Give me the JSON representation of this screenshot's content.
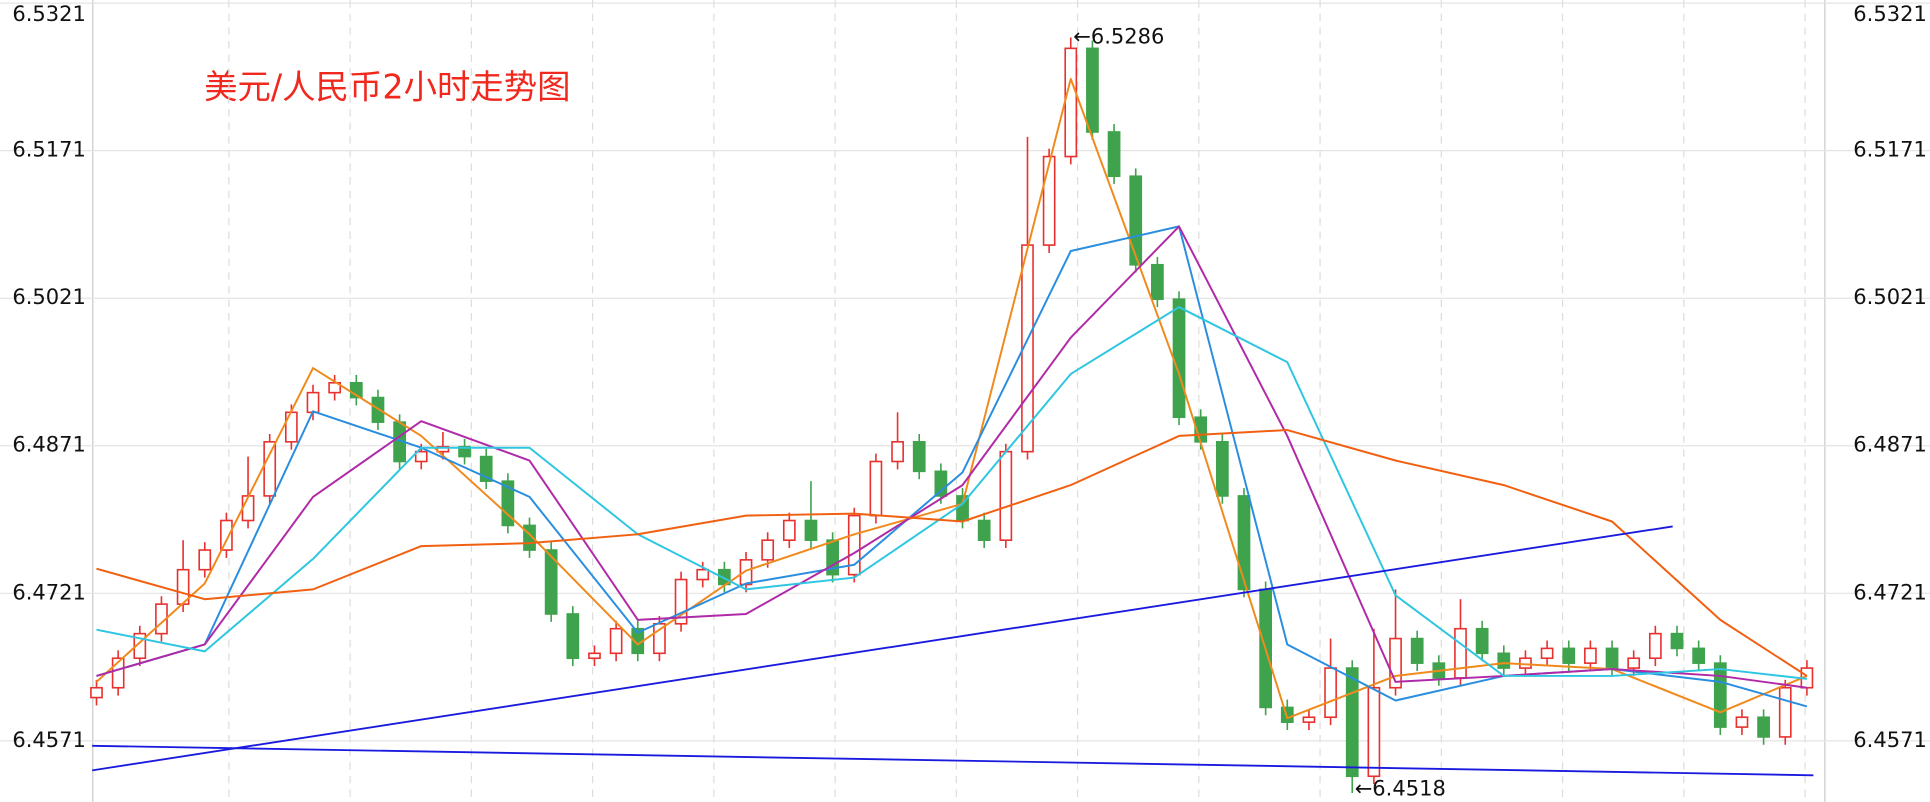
{
  "chart_data": {
    "type": "candlestick",
    "title": "美元/人民币2小时走势图",
    "ylim": [
      6.4509,
      6.5324
    ],
    "yticks": [
      6.4571,
      6.4721,
      6.4871,
      6.5021,
      6.5171,
      6.5321
    ],
    "grid": true,
    "up_color": "#e8312f",
    "down_color": "#3fa34d",
    "open": [
      6.4615,
      6.4625,
      6.4655,
      6.468,
      6.471,
      6.4745,
      6.4765,
      6.4795,
      6.482,
      6.4875,
      6.4905,
      6.4925,
      6.4935,
      6.492,
      6.4895,
      6.4855,
      6.4865,
      6.487,
      6.486,
      6.4835,
      6.479,
      6.4765,
      6.47,
      6.4655,
      6.466,
      6.4685,
      6.466,
      6.469,
      6.4735,
      6.4745,
      6.473,
      6.4755,
      6.4775,
      6.4795,
      6.4775,
      6.474,
      6.48,
      6.4855,
      6.4875,
      6.4845,
      6.482,
      6.4795,
      6.4775,
      6.4865,
      6.5075,
      6.5165,
      6.5275,
      6.519,
      6.5145,
      6.5055,
      6.502,
      6.49,
      6.4875,
      6.482,
      6.4725,
      6.4605,
      6.459,
      6.4595,
      6.4645,
      6.4535,
      6.4625,
      6.4675,
      6.465,
      6.4635,
      6.4685,
      6.466,
      6.4645,
      6.4655,
      6.4665,
      6.465,
      6.4665,
      6.4645,
      6.4655,
      6.468,
      6.4665,
      6.465,
      6.4585,
      6.4595,
      6.4575,
      6.4625
    ],
    "high": [
      6.4633,
      6.4663,
      6.4688,
      6.4718,
      6.4775,
      6.4773,
      6.4803,
      6.486,
      6.4883,
      6.4913,
      6.4933,
      6.4943,
      6.4943,
      6.4928,
      6.4903,
      6.4873,
      6.4885,
      6.4878,
      6.4868,
      6.4843,
      6.4798,
      6.4773,
      6.4708,
      6.4668,
      6.4693,
      6.4693,
      6.4698,
      6.4743,
      6.4753,
      6.4753,
      6.4763,
      6.4783,
      6.4803,
      6.4835,
      6.4783,
      6.4808,
      6.4863,
      6.4905,
      6.4883,
      6.4853,
      6.4828,
      6.4803,
      6.4873,
      6.5185,
      6.5173,
      6.5286,
      6.5283,
      6.5198,
      6.5153,
      6.5063,
      6.5028,
      6.4908,
      6.4883,
      6.4828,
      6.4733,
      6.4613,
      6.4603,
      6.4675,
      6.4653,
      6.4685,
      6.4725,
      6.4683,
      6.4658,
      6.4715,
      6.4693,
      6.4668,
      6.4663,
      6.4673,
      6.4673,
      6.4673,
      6.4673,
      6.4663,
      6.4688,
      6.4688,
      6.4673,
      6.4658,
      6.4603,
      6.4603,
      6.4633,
      6.4653
    ],
    "low": [
      6.4607,
      6.4617,
      6.4647,
      6.4672,
      6.4702,
      6.4737,
      6.4757,
      6.4787,
      6.4812,
      6.4867,
      6.4897,
      6.4917,
      6.4912,
      6.4887,
      6.4847,
      6.4847,
      6.4857,
      6.4852,
      6.4827,
      6.4782,
      6.4757,
      6.4692,
      6.4647,
      6.4647,
      6.4652,
      6.4652,
      6.4652,
      6.4682,
      6.4727,
      6.4722,
      6.4722,
      6.4747,
      6.4767,
      6.4767,
      6.4732,
      6.4732,
      6.4792,
      6.4847,
      6.4837,
      6.4812,
      6.4787,
      6.4767,
      6.4767,
      6.4857,
      6.5067,
      6.5157,
      6.5182,
      6.5137,
      6.5047,
      6.5012,
      6.4892,
      6.4867,
      6.4812,
      6.4717,
      6.4597,
      6.4582,
      6.4582,
      6.4587,
      6.4518,
      6.4527,
      6.4617,
      6.4642,
      6.4627,
      6.4627,
      6.4652,
      6.4637,
      6.4637,
      6.4647,
      6.4642,
      6.4642,
      6.4637,
      6.4637,
      6.4647,
      6.4657,
      6.4642,
      6.4577,
      6.4577,
      6.4567,
      6.4567,
      6.4617
    ],
    "close": [
      6.4625,
      6.4655,
      6.468,
      6.471,
      6.4745,
      6.4765,
      6.4795,
      6.482,
      6.4875,
      6.4905,
      6.4925,
      6.4935,
      6.492,
      6.4895,
      6.4855,
      6.4865,
      6.487,
      6.486,
      6.4835,
      6.479,
      6.4765,
      6.47,
      6.4655,
      6.466,
      6.4685,
      6.466,
      6.469,
      6.4735,
      6.4745,
      6.473,
      6.4755,
      6.4775,
      6.4795,
      6.4775,
      6.474,
      6.48,
      6.4855,
      6.4875,
      6.4845,
      6.482,
      6.4795,
      6.4775,
      6.4865,
      6.5075,
      6.5165,
      6.5275,
      6.519,
      6.5145,
      6.5055,
      6.502,
      6.49,
      6.4875,
      6.482,
      6.4725,
      6.4605,
      6.459,
      6.4595,
      6.4645,
      6.4535,
      6.4625,
      6.4675,
      6.465,
      6.4635,
      6.4685,
      6.466,
      6.4645,
      6.4655,
      6.4665,
      6.465,
      6.4665,
      6.4645,
      6.4655,
      6.468,
      6.4665,
      6.465,
      6.4585,
      6.4595,
      6.4575,
      6.4625,
      6.4645
    ],
    "lines": [
      {
        "color": "#f08a1c",
        "x": [
          0,
          5,
          10,
          15,
          20,
          25,
          30,
          35,
          40,
          45,
          50,
          55,
          60,
          65,
          70,
          75,
          79
        ],
        "values": [
          6.4631,
          6.4731,
          6.495,
          6.4881,
          6.4781,
          6.4669,
          6.4744,
          6.4781,
          6.4812,
          6.5244,
          6.4944,
          6.4594,
          6.4637,
          6.465,
          6.4644,
          6.46,
          6.4637
        ]
      },
      {
        "color": "#2a8ee0",
        "x": [
          0,
          5,
          10,
          15,
          20,
          25,
          30,
          35,
          40,
          45,
          50,
          55,
          60,
          65,
          70,
          75,
          79
        ],
        "values": [
          6.4637,
          6.4669,
          6.4906,
          6.4869,
          6.4819,
          6.4681,
          6.4731,
          6.475,
          6.4844,
          6.5069,
          6.5094,
          6.4669,
          6.4612,
          6.4637,
          6.4644,
          6.4631,
          6.4606
        ]
      },
      {
        "color": "#b02aa8",
        "x": [
          0,
          5,
          10,
          15,
          20,
          25,
          30,
          35,
          40,
          45,
          50,
          55,
          60,
          65,
          70,
          75,
          79
        ],
        "values": [
          6.4637,
          6.4669,
          6.4819,
          6.4896,
          6.4856,
          6.4694,
          6.47,
          6.4762,
          6.4831,
          6.4981,
          6.5094,
          6.4881,
          6.4631,
          6.4637,
          6.4644,
          6.4637,
          6.4625
        ]
      },
      {
        "color": "#2ec6e0",
        "x": [
          0,
          5,
          10,
          15,
          20,
          25,
          30,
          35,
          40,
          45,
          50,
          55,
          60,
          65,
          70,
          75,
          79
        ],
        "values": [
          6.4684,
          6.4662,
          6.4756,
          6.4869,
          6.4869,
          6.4781,
          6.4725,
          6.4737,
          6.4812,
          6.4944,
          6.5012,
          6.4956,
          6.4719,
          6.4637,
          6.4637,
          6.4644,
          6.4634
        ]
      },
      {
        "color": "#f06010",
        "x": [
          0,
          5,
          10,
          15,
          20,
          25,
          30,
          35,
          40,
          45,
          50,
          55,
          60,
          65,
          70,
          75,
          79
        ],
        "values": [
          6.4746,
          6.4715,
          6.4725,
          6.4769,
          6.4772,
          6.4781,
          6.48,
          6.4802,
          6.4794,
          6.4831,
          6.4881,
          6.4887,
          6.4856,
          6.4831,
          6.4794,
          6.4694,
          6.4637
        ]
      }
    ],
    "trendlines": [
      {
        "color": "#1a1adf",
        "x": [
          -0.2,
          72.8
        ],
        "values": [
          6.4541,
          6.4789
        ]
      },
      {
        "color": "#1a1adf",
        "x": [
          -0.2,
          79.3
        ],
        "values": [
          6.4566,
          6.4536
        ]
      }
    ],
    "annotations": [
      {
        "text": "←6.5286",
        "index": 45,
        "value": 6.5286
      },
      {
        "text": "←6.4518",
        "index": 58,
        "value": 6.4518
      }
    ]
  }
}
